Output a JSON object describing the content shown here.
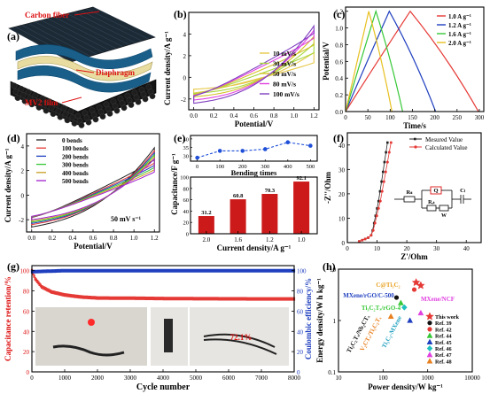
{
  "panels": {
    "a": {
      "label": "(a)",
      "annotations": [
        "Carbon fiber",
        "Diaphragm",
        "MV2 film"
      ]
    },
    "b": {
      "label": "(b)",
      "xlabel": "Potential/V",
      "ylabel": "Current density/A g⁻¹",
      "xticks": [
        "0.0",
        "0.2",
        "0.4",
        "0.6",
        "0.8",
        "1.0",
        "1.2"
      ],
      "yticks": [
        "-2",
        "0",
        "2",
        "4"
      ]
    },
    "c": {
      "label": "(c)",
      "xlabel": "Time/s",
      "ylabel": "Potential/V",
      "xticks": [
        "0",
        "50",
        "100",
        "150",
        "200",
        "250",
        "300"
      ],
      "yticks": [
        "0.0",
        "0.2",
        "0.4",
        "0.6",
        "0.8",
        "1.0",
        "1.2"
      ]
    },
    "d": {
      "label": "(d)",
      "xlabel": "Potential/V",
      "ylabel": "Current density/A g⁻¹",
      "note": "50 mV s⁻¹",
      "xticks": [
        "0.0",
        "0.2",
        "0.4",
        "0.6",
        "0.8",
        "1.0",
        "1.2"
      ],
      "yticks": [
        "-2",
        "0",
        "2",
        "4"
      ]
    },
    "e": {
      "label": "(e)",
      "xlabel": "Current density/A g⁻¹",
      "ylabel": "Capacitance/F g⁻¹",
      "top_xlabel": "Bending times",
      "top_xticks": [
        "0",
        "100",
        "200",
        "300",
        "400",
        "500"
      ],
      "top_yticks": [
        "30",
        "35",
        "40"
      ],
      "bar_yticks": [
        "0",
        "20",
        "40",
        "60",
        "80",
        "100"
      ]
    },
    "f": {
      "label": "(f)",
      "xlabel": "Z'/Ohm",
      "ylabel": "-Z''/Ohm",
      "xticks": [
        "0",
        "10",
        "20",
        "30",
        "40"
      ],
      "yticks": [
        "0",
        "10",
        "20",
        "30",
        "40"
      ],
      "circuit": {
        "r1": "Rₛ",
        "q": "Q",
        "r2": "Rₑₜ",
        "w": "W",
        "c": "Cₗ"
      }
    },
    "g": {
      "label": "(g)",
      "xlabel": "Cycle number",
      "ylabel_left": "Capacitance retention/%",
      "ylabel_right": "Coulombic efficiency/%",
      "annotation": "72.1%",
      "xticks": [
        "0",
        "1000",
        "2000",
        "3000",
        "4000",
        "5000",
        "6000",
        "7000",
        "8000"
      ],
      "yticks_left": [
        "0",
        "20",
        "40",
        "60",
        "80",
        "100"
      ],
      "yticks_right": [
        "0",
        "20",
        "40",
        "60",
        "80",
        "100"
      ]
    },
    "h": {
      "label": "(h)",
      "xlabel": "Power density/W kg⁻¹",
      "ylabel": "Energy density/W h kg⁻¹",
      "xticks": [
        "10",
        "100",
        "1000",
        "10000"
      ],
      "yticks": [
        "0.1",
        "1",
        "10"
      ],
      "text_labels": [
        "C@Ti₃C₂",
        "MXene/rGO/C-500",
        "MXene/NCF",
        "Ti₃C₂Tₓ/rGO-4",
        "Ti₃C₂Tₓ/Nb₂CTₓ",
        "V₂CTₓ/Ti₃C₂Tₓ",
        "Ti₃C₂-MXene"
      ]
    }
  },
  "chart_data": [
    {
      "type": "line",
      "panel": "b",
      "xlim": [
        0,
        1.2
      ],
      "ylim": [
        -3,
        6
      ],
      "legend_position": "bottom-right",
      "series": [
        {
          "name": "10 mV/s",
          "color": "#e6c84a",
          "max": 2.8,
          "min": -1.1
        },
        {
          "name": "30 mV/s",
          "color": "#a8d840",
          "max": 3.8,
          "min": -1.5
        },
        {
          "name": "50 mV/s",
          "color": "#d4c22a",
          "max": 4.6,
          "min": -1.8
        },
        {
          "name": "80 mV/s",
          "color": "#e040e0",
          "max": 5.3,
          "min": -2.1
        },
        {
          "name": "100 mV/s",
          "color": "#8040c0",
          "max": 5.8,
          "min": -2.4
        }
      ]
    },
    {
      "type": "line",
      "panel": "c",
      "xlim": [
        0,
        310
      ],
      "ylim": [
        0,
        1.25
      ],
      "legend_position": "top-right",
      "series": [
        {
          "name": "1.0 A g⁻¹",
          "color": "#e53935",
          "charge_end": 145,
          "discharge_end": 298
        },
        {
          "name": "1.2 A g⁻¹",
          "color": "#1f3fbf",
          "charge_end": 98,
          "discharge_end": 202
        },
        {
          "name": "1.6 A g⁻¹",
          "color": "#37c837",
          "charge_end": 68,
          "discharge_end": 128
        },
        {
          "name": "2.0 A g⁻¹",
          "color": "#e8c020",
          "charge_end": 52,
          "discharge_end": 104
        }
      ]
    },
    {
      "type": "line",
      "panel": "d",
      "xlim": [
        -0.05,
        1.25
      ],
      "ylim": [
        -3,
        5
      ],
      "legend_position": "top-left",
      "series": [
        {
          "name": "0 bends",
          "color": "#222222",
          "max": 4.7,
          "min": -2.6
        },
        {
          "name": "100 bends",
          "color": "#e53935",
          "max": 4.4,
          "min": -2.4
        },
        {
          "name": "200 bends",
          "color": "#1f3fbf",
          "max": 4.2,
          "min": -2.3
        },
        {
          "name": "300 bends",
          "color": "#37c837",
          "max": 4.0,
          "min": -2.2
        },
        {
          "name": "400 bends",
          "color": "#c8a020",
          "max": 3.8,
          "min": -2.1
        },
        {
          "name": "500 bends",
          "color": "#a020d0",
          "max": 3.6,
          "min": -2.0
        }
      ]
    },
    {
      "type": "bar",
      "panel": "e",
      "categories": [
        "2.0",
        "1.6",
        "1.2",
        "1.0"
      ],
      "values": [
        31.2,
        60.8,
        70.3,
        92.1
      ],
      "ylim": [
        0,
        100
      ],
      "color": "#cc1a1a"
    },
    {
      "type": "line",
      "panel": "e-top",
      "x": [
        0,
        100,
        200,
        300,
        400,
        500
      ],
      "y": [
        29,
        33,
        33,
        34,
        38,
        36
      ],
      "ylim": [
        27,
        42
      ],
      "color": "#1f4fd8"
    },
    {
      "type": "scatter",
      "panel": "f",
      "xlim": [
        0,
        45
      ],
      "ylim": [
        0,
        45
      ],
      "legend_position": "top-right",
      "series": [
        {
          "name": "Mesured Value",
          "color": "#222222",
          "x": [
            4,
            5,
            6,
            7,
            8,
            8.5,
            9,
            9.5,
            10,
            10.5,
            11,
            11.5,
            12,
            12.5,
            13,
            13.5
          ],
          "y": [
            0.5,
            1,
            1.5,
            2,
            3,
            5,
            8,
            11,
            14,
            17,
            21,
            25,
            29,
            33,
            37,
            41
          ]
        },
        {
          "name": "Calculated Value",
          "color": "#e53935",
          "x": [
            4,
            5,
            6,
            7,
            8,
            8.7,
            9.3,
            9.9,
            10.5,
            11.1,
            11.7,
            12.3,
            12.9,
            13.5,
            14.1,
            14.7
          ],
          "y": [
            0.5,
            1,
            1.5,
            2,
            3,
            5,
            8,
            11,
            14,
            17,
            21,
            25,
            29,
            33,
            37,
            41
          ]
        }
      ]
    },
    {
      "type": "scatter",
      "panel": "g",
      "xlim": [
        0,
        8000
      ],
      "ylim": [
        0,
        105
      ],
      "series": [
        {
          "name": "Capacitance retention",
          "color": "#e53935",
          "x": [
            0,
            100,
            300,
            600,
            1000,
            1500,
            2000,
            3000,
            4000,
            5000,
            6000,
            7000,
            8000
          ],
          "y": [
            100,
            92,
            84,
            79,
            76,
            74,
            73,
            72.8,
            72.5,
            72.3,
            72.2,
            72.1,
            72.1
          ]
        },
        {
          "name": "Coulombic efficiency",
          "color": "#1f3fbf",
          "x": [
            0,
            1000,
            2000,
            3000,
            4000,
            5000,
            6000,
            7000,
            8000
          ],
          "y": [
            99,
            100,
            100,
            100,
            100,
            100,
            100,
            100,
            100
          ]
        }
      ]
    },
    {
      "type": "scatter",
      "panel": "h",
      "xscale": "log",
      "yscale": "log",
      "xlim": [
        10,
        10000
      ],
      "ylim": [
        0.1,
        10
      ],
      "legend_position": "bottom-right",
      "series": [
        {
          "name": "This work",
          "marker": "star",
          "color": "#e53935",
          "points": [
            [
              550,
              5.5
            ],
            [
              700,
              4.8
            ]
          ]
        },
        {
          "name": "Ref. 39",
          "marker": "circle",
          "color": "#111111",
          "points": [
            [
              200,
              2.8
            ]
          ]
        },
        {
          "name": "Ref. 42",
          "marker": "circle",
          "color": "#e53935",
          "points": [
            [
              500,
              4.0
            ]
          ]
        },
        {
          "name": "Ref. 44",
          "marker": "triangle",
          "color": "#37c837",
          "points": [
            [
              250,
              2.2
            ]
          ]
        },
        {
          "name": "Ref. 45",
          "marker": "triangle",
          "color": "#1f3fbf",
          "points": [
            [
              400,
              1.0
            ]
          ]
        },
        {
          "name": "Ref. 46",
          "marker": "diamond",
          "color": "#20c0c0",
          "points": [
            [
              300,
              1.8
            ]
          ]
        },
        {
          "name": "Ref. 47",
          "marker": "triangle",
          "color": "#e040e0",
          "points": [
            [
              700,
              1.4
            ]
          ]
        },
        {
          "name": "Ref. 48",
          "marker": "triangle",
          "color": "#e88020",
          "points": [
            [
              150,
              1.2
            ]
          ]
        }
      ]
    }
  ]
}
